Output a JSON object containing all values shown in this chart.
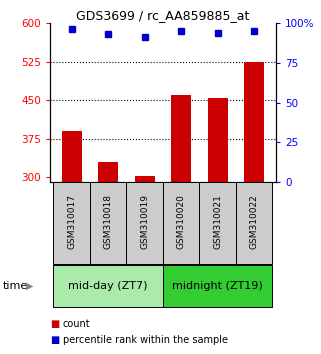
{
  "title": "GDS3699 / rc_AA859885_at",
  "samples": [
    "GSM310017",
    "GSM310018",
    "GSM310019",
    "GSM310020",
    "GSM310021",
    "GSM310022"
  ],
  "bar_values": [
    390,
    330,
    303,
    460,
    455,
    525
  ],
  "percentile_values": [
    96,
    93,
    91,
    95,
    94,
    95
  ],
  "bar_color": "#cc0000",
  "percentile_color": "#0000cc",
  "ylim_left": [
    290,
    600
  ],
  "ylim_right": [
    0,
    100
  ],
  "yticks_left": [
    300,
    375,
    450,
    525,
    600
  ],
  "yticks_right": [
    0,
    25,
    50,
    75,
    100
  ],
  "hlines": [
    375,
    450,
    525
  ],
  "groups": [
    {
      "label": "mid-day (ZT7)",
      "indices": [
        0,
        1,
        2
      ],
      "color": "#aaeaaa"
    },
    {
      "label": "midnight (ZT19)",
      "indices": [
        3,
        4,
        5
      ],
      "color": "#33cc33"
    }
  ],
  "group_row_label": "time",
  "legend_count_label": "count",
  "legend_percentile_label": "percentile rank within the sample",
  "sample_box_color": "#cccccc",
  "bar_bottom": 290
}
